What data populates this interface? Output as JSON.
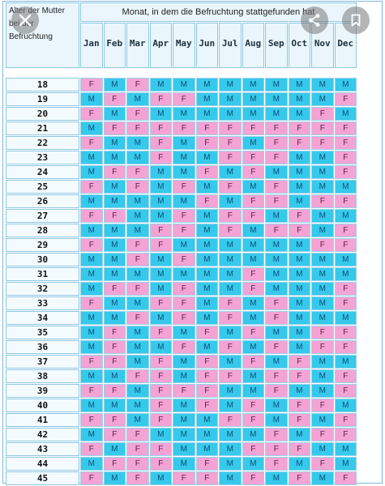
{
  "chart": {
    "title": "Monat, in dem die Befruchtung stattgefunden hat",
    "row_header_lines": [
      "Alter der Mutter",
      "bei der",
      "Befruchtung"
    ],
    "months": [
      "Jan",
      "Feb",
      "Mar",
      "Apr",
      "May",
      "Jun",
      "Jul",
      "Aug",
      "Sep",
      "Oct",
      "Nov",
      "Dec"
    ],
    "rows": [
      {
        "age": "18",
        "cells": [
          "F",
          "M",
          "F",
          "M",
          "M",
          "M",
          "M",
          "M",
          "M",
          "M",
          "M",
          "M"
        ]
      },
      {
        "age": "19",
        "cells": [
          "M",
          "F",
          "M",
          "F",
          "F",
          "M",
          "M",
          "M",
          "M",
          "M",
          "M",
          "F"
        ]
      },
      {
        "age": "20",
        "cells": [
          "F",
          "M",
          "F",
          "M",
          "M",
          "M",
          "M",
          "M",
          "M",
          "M",
          "F",
          "M"
        ]
      },
      {
        "age": "21",
        "cells": [
          "M",
          "F",
          "F",
          "F",
          "F",
          "F",
          "F",
          "F",
          "F",
          "F",
          "F",
          "F"
        ]
      },
      {
        "age": "22",
        "cells": [
          "F",
          "M",
          "M",
          "F",
          "M",
          "F",
          "F",
          "M",
          "F",
          "F",
          "F",
          "F"
        ]
      },
      {
        "age": "23",
        "cells": [
          "M",
          "M",
          "M",
          "F",
          "M",
          "M",
          "F",
          "F",
          "F",
          "M",
          "M",
          "F"
        ]
      },
      {
        "age": "24",
        "cells": [
          "M",
          "F",
          "F",
          "M",
          "M",
          "F",
          "M",
          "F",
          "M",
          "M",
          "M",
          "F"
        ]
      },
      {
        "age": "25",
        "cells": [
          "F",
          "M",
          "F",
          "M",
          "F",
          "M",
          "F",
          "M",
          "F",
          "M",
          "M",
          "M"
        ]
      },
      {
        "age": "26",
        "cells": [
          "M",
          "M",
          "M",
          "M",
          "M",
          "F",
          "M",
          "F",
          "F",
          "M",
          "F",
          "F"
        ]
      },
      {
        "age": "27",
        "cells": [
          "F",
          "F",
          "M",
          "M",
          "F",
          "M",
          "F",
          "F",
          "M",
          "F",
          "M",
          "M"
        ]
      },
      {
        "age": "28",
        "cells": [
          "M",
          "M",
          "M",
          "F",
          "F",
          "M",
          "F",
          "M",
          "F",
          "F",
          "M",
          "F"
        ]
      },
      {
        "age": "29",
        "cells": [
          "F",
          "M",
          "F",
          "F",
          "M",
          "M",
          "M",
          "M",
          "M",
          "M",
          "F",
          "F"
        ]
      },
      {
        "age": "30",
        "cells": [
          "M",
          "M",
          "F",
          "M",
          "F",
          "M",
          "M",
          "M",
          "M",
          "M",
          "M",
          "M"
        ]
      },
      {
        "age": "31",
        "cells": [
          "M",
          "M",
          "M",
          "M",
          "M",
          "M",
          "M",
          "F",
          "M",
          "M",
          "M",
          "M"
        ]
      },
      {
        "age": "32",
        "cells": [
          "M",
          "F",
          "F",
          "M",
          "F",
          "M",
          "M",
          "F",
          "M",
          "M",
          "M",
          "F"
        ]
      },
      {
        "age": "33",
        "cells": [
          "F",
          "M",
          "M",
          "F",
          "F",
          "M",
          "F",
          "M",
          "F",
          "M",
          "M",
          "F"
        ]
      },
      {
        "age": "34",
        "cells": [
          "M",
          "M",
          "F",
          "M",
          "F",
          "M",
          "F",
          "M",
          "F",
          "M",
          "M",
          "M"
        ]
      },
      {
        "age": "35",
        "cells": [
          "M",
          "F",
          "M",
          "F",
          "M",
          "F",
          "M",
          "F",
          "M",
          "M",
          "F",
          "F"
        ]
      },
      {
        "age": "36",
        "cells": [
          "M",
          "F",
          "M",
          "M",
          "F",
          "M",
          "F",
          "M",
          "F",
          "M",
          "F",
          "F"
        ]
      },
      {
        "age": "37",
        "cells": [
          "F",
          "F",
          "M",
          "F",
          "M",
          "F",
          "M",
          "F",
          "M",
          "F",
          "M",
          "M"
        ]
      },
      {
        "age": "38",
        "cells": [
          "M",
          "M",
          "F",
          "F",
          "M",
          "F",
          "F",
          "M",
          "F",
          "F",
          "M",
          "F"
        ]
      },
      {
        "age": "39",
        "cells": [
          "F",
          "F",
          "M",
          "F",
          "F",
          "F",
          "M",
          "M",
          "F",
          "M",
          "M",
          "F"
        ]
      },
      {
        "age": "40",
        "cells": [
          "M",
          "M",
          "M",
          "F",
          "M",
          "F",
          "M",
          "F",
          "M",
          "F",
          "F",
          "M"
        ]
      },
      {
        "age": "41",
        "cells": [
          "F",
          "F",
          "M",
          "F",
          "M",
          "M",
          "F",
          "F",
          "M",
          "F",
          "M",
          "F"
        ]
      },
      {
        "age": "42",
        "cells": [
          "M",
          "F",
          "F",
          "M",
          "M",
          "M",
          "M",
          "M",
          "F",
          "M",
          "F",
          "F"
        ]
      },
      {
        "age": "43",
        "cells": [
          "F",
          "M",
          "F",
          "F",
          "M",
          "M",
          "M",
          "F",
          "F",
          "F",
          "M",
          "M"
        ]
      },
      {
        "age": "44",
        "cells": [
          "M",
          "F",
          "F",
          "F",
          "M",
          "F",
          "M",
          "M",
          "F",
          "M",
          "F",
          "M"
        ]
      },
      {
        "age": "45",
        "cells": [
          "F",
          "M",
          "F",
          "M",
          "F",
          "F",
          "M",
          "F",
          "M",
          "F",
          "M",
          "F"
        ]
      }
    ]
  },
  "overlay": {
    "close_icon": "close-icon",
    "share_icon": "share-icon",
    "bookmark_icon": "bookmark-icon",
    "accent": "#36c9eb",
    "pink": "#f3a3d4"
  }
}
